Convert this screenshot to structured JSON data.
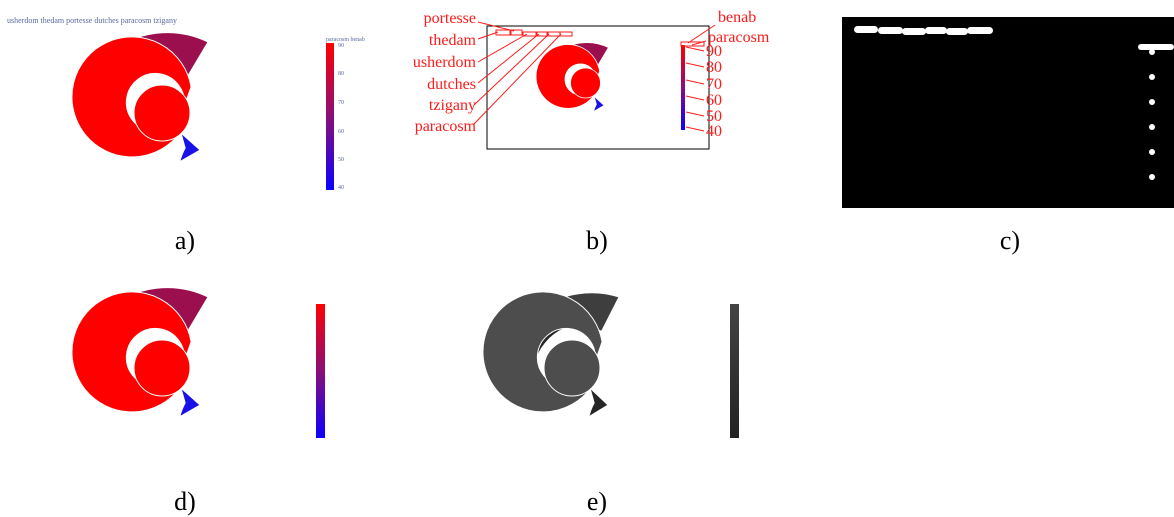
{
  "figure": {
    "panels": [
      {
        "id": "a",
        "caption": "a)",
        "title_text": "usherdom thedam portesse dutches paracosm tzigany",
        "colorbar_title": "paracosm benab",
        "colorbar_ticks": [
          "90",
          "80",
          "70",
          "60",
          "50",
          "40"
        ]
      },
      {
        "id": "b",
        "caption": "b)",
        "left_labels": [
          "portesse",
          "thedam",
          "usherdom",
          "dutches",
          "tzigany",
          "paracosm"
        ],
        "right_labels": [
          "benab",
          "paracosm"
        ],
        "tick_labels": [
          "90",
          "80",
          "70",
          "60",
          "50",
          "40"
        ]
      },
      {
        "id": "c",
        "caption": "c)"
      },
      {
        "id": "d",
        "caption": "d)"
      },
      {
        "id": "e",
        "caption": "e)"
      }
    ],
    "colors": {
      "red": "#ff0000",
      "maroon": "#9b0f4e",
      "blue": "#1a10e8",
      "annotation_red": "#ff1a1a",
      "gray_dark": "#262626",
      "gray_mid": "#3e3e3e",
      "gray_light": "#4d4d4d"
    }
  }
}
